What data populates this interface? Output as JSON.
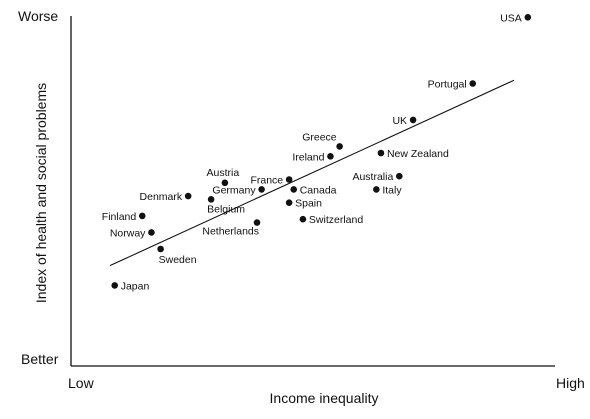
{
  "chart_data": {
    "type": "scatter",
    "title": "",
    "xlabel": "Income inequality",
    "ylabel": "Index of health and social problems",
    "x_ends": {
      "low": "Low",
      "high": "High"
    },
    "y_ends": {
      "low": "Better",
      "high": "Worse"
    },
    "xlim": [
      0,
      100
    ],
    "ylim": [
      0,
      100
    ],
    "grid": false,
    "legend": "none",
    "trendline": {
      "x": [
        7,
        95
      ],
      "y": [
        24,
        80
      ]
    },
    "points": [
      {
        "name": "USA",
        "x": 98,
        "y": 99,
        "label_side": "left"
      },
      {
        "name": "Portugal",
        "x": 86,
        "y": 79,
        "label_side": "left"
      },
      {
        "name": "UK",
        "x": 73,
        "y": 68,
        "label_side": "left"
      },
      {
        "name": "Greece",
        "x": 57,
        "y": 60,
        "label_side": "above-left"
      },
      {
        "name": "Ireland",
        "x": 55,
        "y": 57,
        "label_side": "left"
      },
      {
        "name": "New Zealand",
        "x": 66,
        "y": 58,
        "label_side": "right"
      },
      {
        "name": "Australia",
        "x": 70,
        "y": 51,
        "label_side": "left"
      },
      {
        "name": "Italy",
        "x": 65,
        "y": 47,
        "label_side": "right"
      },
      {
        "name": "France",
        "x": 46,
        "y": 50,
        "label_side": "left"
      },
      {
        "name": "Canada",
        "x": 47,
        "y": 47,
        "label_side": "right"
      },
      {
        "name": "Austria",
        "x": 32,
        "y": 49,
        "label_side": "above"
      },
      {
        "name": "Germany",
        "x": 40,
        "y": 47,
        "label_side": "left"
      },
      {
        "name": "Denmark",
        "x": 24,
        "y": 45,
        "label_side": "left"
      },
      {
        "name": "Belgium",
        "x": 29,
        "y": 44,
        "label_side": "below"
      },
      {
        "name": "Spain",
        "x": 46,
        "y": 43,
        "label_side": "right"
      },
      {
        "name": "Switzerland",
        "x": 49,
        "y": 38,
        "label_side": "right"
      },
      {
        "name": "Netherlands",
        "x": 39,
        "y": 37,
        "label_side": "below-left"
      },
      {
        "name": "Finland",
        "x": 14,
        "y": 39,
        "label_side": "left"
      },
      {
        "name": "Norway",
        "x": 16,
        "y": 34,
        "label_side": "left"
      },
      {
        "name": "Sweden",
        "x": 18,
        "y": 29,
        "label_side": "below-right"
      },
      {
        "name": "Japan",
        "x": 8,
        "y": 18,
        "label_side": "right"
      }
    ]
  }
}
